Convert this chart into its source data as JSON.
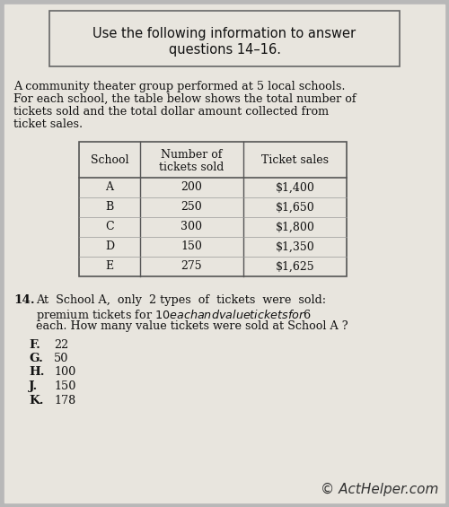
{
  "bg_color": "#b8b8b8",
  "page_bg": "#e8e5de",
  "box_text_line1": "Use the following information to answer",
  "box_text_line2": "questions 14–16.",
  "para_lines": [
    "A community theater group performed at 5 local schools.",
    "For each school, the table below shows the total number of",
    "tickets sold and the total dollar amount collected from",
    "ticket sales."
  ],
  "table_headers": [
    "School",
    "Number of\ntickets sold",
    "Ticket sales"
  ],
  "table_rows": [
    [
      "A",
      "200",
      "$1,400"
    ],
    [
      "B",
      "250",
      "$1,650"
    ],
    [
      "C",
      "300",
      "$1,800"
    ],
    [
      "D",
      "150",
      "$1,350"
    ],
    [
      "E",
      "275",
      "$1,625"
    ]
  ],
  "question_number": "14.",
  "question_lines": [
    "At  School A,  only  2 types  of  tickets  were  sold:",
    "premium tickets for $10 each and value tickets for $6",
    "each. How many value tickets were sold at School A ?"
  ],
  "answer_choices": [
    [
      "F.",
      "22"
    ],
    [
      "G.",
      "50"
    ],
    [
      "H.",
      "100"
    ],
    [
      "J.",
      "150"
    ],
    [
      "K.",
      "178"
    ]
  ],
  "copyright_text": "© ActHelper.com",
  "font_size_box": 10.5,
  "font_size_body": 9.2,
  "font_size_table": 9.0,
  "font_size_question": 9.2,
  "font_size_copyright": 11
}
